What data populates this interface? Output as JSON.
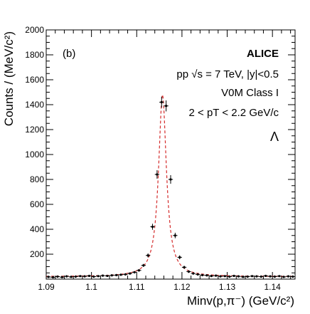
{
  "chart_data": {
    "type": "scatter",
    "panel_label": "(b)",
    "experiment": "ALICE",
    "annotations": {
      "energy": "pp √s = 7 TeV, |y|<0.5",
      "class": "V0M Class I",
      "pt_range": "2 < pT < 2.2 GeV/c",
      "particle": "Λ"
    },
    "xlabel": "Minv(p,π⁻) (GeV/c²)",
    "ylabel": "Counts / (MeV/c²)",
    "xlim": [
      1.09,
      1.145
    ],
    "ylim": [
      0,
      2000
    ],
    "x_ticks": [
      "1.09",
      "1.1",
      "1.11",
      "1.12",
      "1.13",
      "1.14"
    ],
    "y_ticks": [
      "200",
      "400",
      "600",
      "800",
      "1000",
      "1200",
      "1400",
      "1600",
      "1800",
      "2000"
    ],
    "grid": false,
    "series": [
      {
        "style": "markers",
        "color": "#000000",
        "x": [
          1.0905,
          1.0915,
          1.0925,
          1.0935,
          1.0945,
          1.0955,
          1.0965,
          1.0975,
          1.0985,
          1.0995,
          1.1005,
          1.1015,
          1.1025,
          1.1035,
          1.1045,
          1.1055,
          1.1065,
          1.1075,
          1.1085,
          1.1095,
          1.1105,
          1.1115,
          1.1125,
          1.1135,
          1.1145,
          1.1155,
          1.1165,
          1.1175,
          1.1185,
          1.1195,
          1.1205,
          1.1215,
          1.1225,
          1.1235,
          1.1245,
          1.1255,
          1.1265,
          1.1275,
          1.1285,
          1.1295,
          1.1305,
          1.1315,
          1.1325,
          1.1335,
          1.1345,
          1.1355,
          1.1365,
          1.1375,
          1.1385,
          1.1395,
          1.1405,
          1.1415,
          1.1425,
          1.1435,
          1.1445
        ],
        "y": [
          18,
          15,
          20,
          16,
          22,
          18,
          20,
          24,
          22,
          26,
          20,
          24,
          28,
          26,
          30,
          32,
          35,
          38,
          45,
          55,
          70,
          110,
          190,
          420,
          840,
          1420,
          1390,
          800,
          350,
          175,
          95,
          60,
          45,
          38,
          32,
          30,
          25,
          28,
          22,
          24,
          20,
          26,
          22,
          18,
          20,
          24,
          22,
          20,
          26,
          22,
          20,
          24,
          18,
          22,
          20
        ],
        "yerr": [
          6,
          6,
          6,
          6,
          6,
          6,
          6,
          6,
          6,
          6,
          6,
          6,
          6,
          6,
          7,
          7,
          7,
          7,
          8,
          9,
          10,
          12,
          16,
          24,
          34,
          44,
          44,
          34,
          22,
          16,
          12,
          10,
          8,
          8,
          7,
          7,
          7,
          7,
          6,
          6,
          6,
          6,
          6,
          6,
          6,
          6,
          6,
          6,
          6,
          6,
          6,
          6,
          6,
          6,
          6
        ]
      },
      {
        "style": "dashed-line",
        "color": "#d42a2a",
        "fit": {
          "peak_x": 1.1157,
          "peak_y": 1480,
          "width": 0.00105,
          "background": 20
        }
      }
    ]
  }
}
